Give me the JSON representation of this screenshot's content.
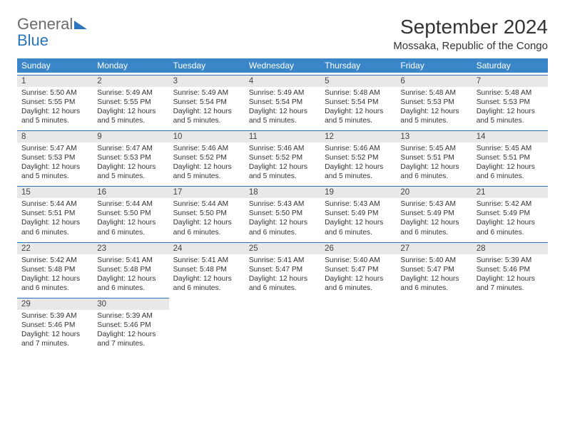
{
  "brand": {
    "word1": "General",
    "word2": "Blue"
  },
  "header": {
    "month_year": "September 2024",
    "location": "Mossaka, Republic of the Congo"
  },
  "styling": {
    "header_bg": "#3a86c8",
    "header_text": "#ffffff",
    "daynum_bg": "#e8e8e8",
    "day_border": "#2a75bb",
    "body_text": "#333333",
    "logo_gray": "#6b6b6b",
    "logo_blue": "#2a75bb",
    "page_bg": "#ffffff",
    "month_fontsize": 28,
    "location_fontsize": 15,
    "dayheader_fontsize": 12,
    "daydata_fontsize": 10.2
  },
  "weekdays": [
    "Sunday",
    "Monday",
    "Tuesday",
    "Wednesday",
    "Thursday",
    "Friday",
    "Saturday"
  ],
  "days": [
    {
      "n": "1",
      "sr": "5:50 AM",
      "ss": "5:55 PM",
      "dl": "12 hours and 5 minutes."
    },
    {
      "n": "2",
      "sr": "5:49 AM",
      "ss": "5:55 PM",
      "dl": "12 hours and 5 minutes."
    },
    {
      "n": "3",
      "sr": "5:49 AM",
      "ss": "5:54 PM",
      "dl": "12 hours and 5 minutes."
    },
    {
      "n": "4",
      "sr": "5:49 AM",
      "ss": "5:54 PM",
      "dl": "12 hours and 5 minutes."
    },
    {
      "n": "5",
      "sr": "5:48 AM",
      "ss": "5:54 PM",
      "dl": "12 hours and 5 minutes."
    },
    {
      "n": "6",
      "sr": "5:48 AM",
      "ss": "5:53 PM",
      "dl": "12 hours and 5 minutes."
    },
    {
      "n": "7",
      "sr": "5:48 AM",
      "ss": "5:53 PM",
      "dl": "12 hours and 5 minutes."
    },
    {
      "n": "8",
      "sr": "5:47 AM",
      "ss": "5:53 PM",
      "dl": "12 hours and 5 minutes."
    },
    {
      "n": "9",
      "sr": "5:47 AM",
      "ss": "5:53 PM",
      "dl": "12 hours and 5 minutes."
    },
    {
      "n": "10",
      "sr": "5:46 AM",
      "ss": "5:52 PM",
      "dl": "12 hours and 5 minutes."
    },
    {
      "n": "11",
      "sr": "5:46 AM",
      "ss": "5:52 PM",
      "dl": "12 hours and 5 minutes."
    },
    {
      "n": "12",
      "sr": "5:46 AM",
      "ss": "5:52 PM",
      "dl": "12 hours and 5 minutes."
    },
    {
      "n": "13",
      "sr": "5:45 AM",
      "ss": "5:51 PM",
      "dl": "12 hours and 6 minutes."
    },
    {
      "n": "14",
      "sr": "5:45 AM",
      "ss": "5:51 PM",
      "dl": "12 hours and 6 minutes."
    },
    {
      "n": "15",
      "sr": "5:44 AM",
      "ss": "5:51 PM",
      "dl": "12 hours and 6 minutes."
    },
    {
      "n": "16",
      "sr": "5:44 AM",
      "ss": "5:50 PM",
      "dl": "12 hours and 6 minutes."
    },
    {
      "n": "17",
      "sr": "5:44 AM",
      "ss": "5:50 PM",
      "dl": "12 hours and 6 minutes."
    },
    {
      "n": "18",
      "sr": "5:43 AM",
      "ss": "5:50 PM",
      "dl": "12 hours and 6 minutes."
    },
    {
      "n": "19",
      "sr": "5:43 AM",
      "ss": "5:49 PM",
      "dl": "12 hours and 6 minutes."
    },
    {
      "n": "20",
      "sr": "5:43 AM",
      "ss": "5:49 PM",
      "dl": "12 hours and 6 minutes."
    },
    {
      "n": "21",
      "sr": "5:42 AM",
      "ss": "5:49 PM",
      "dl": "12 hours and 6 minutes."
    },
    {
      "n": "22",
      "sr": "5:42 AM",
      "ss": "5:48 PM",
      "dl": "12 hours and 6 minutes."
    },
    {
      "n": "23",
      "sr": "5:41 AM",
      "ss": "5:48 PM",
      "dl": "12 hours and 6 minutes."
    },
    {
      "n": "24",
      "sr": "5:41 AM",
      "ss": "5:48 PM",
      "dl": "12 hours and 6 minutes."
    },
    {
      "n": "25",
      "sr": "5:41 AM",
      "ss": "5:47 PM",
      "dl": "12 hours and 6 minutes."
    },
    {
      "n": "26",
      "sr": "5:40 AM",
      "ss": "5:47 PM",
      "dl": "12 hours and 6 minutes."
    },
    {
      "n": "27",
      "sr": "5:40 AM",
      "ss": "5:47 PM",
      "dl": "12 hours and 6 minutes."
    },
    {
      "n": "28",
      "sr": "5:39 AM",
      "ss": "5:46 PM",
      "dl": "12 hours and 7 minutes."
    },
    {
      "n": "29",
      "sr": "5:39 AM",
      "ss": "5:46 PM",
      "dl": "12 hours and 7 minutes."
    },
    {
      "n": "30",
      "sr": "5:39 AM",
      "ss": "5:46 PM",
      "dl": "12 hours and 7 minutes."
    }
  ],
  "labels": {
    "sunrise": "Sunrise:",
    "sunset": "Sunset:",
    "daylight": "Daylight:"
  },
  "calendar_layout": {
    "start_weekday": 0,
    "total_cells": 35
  }
}
